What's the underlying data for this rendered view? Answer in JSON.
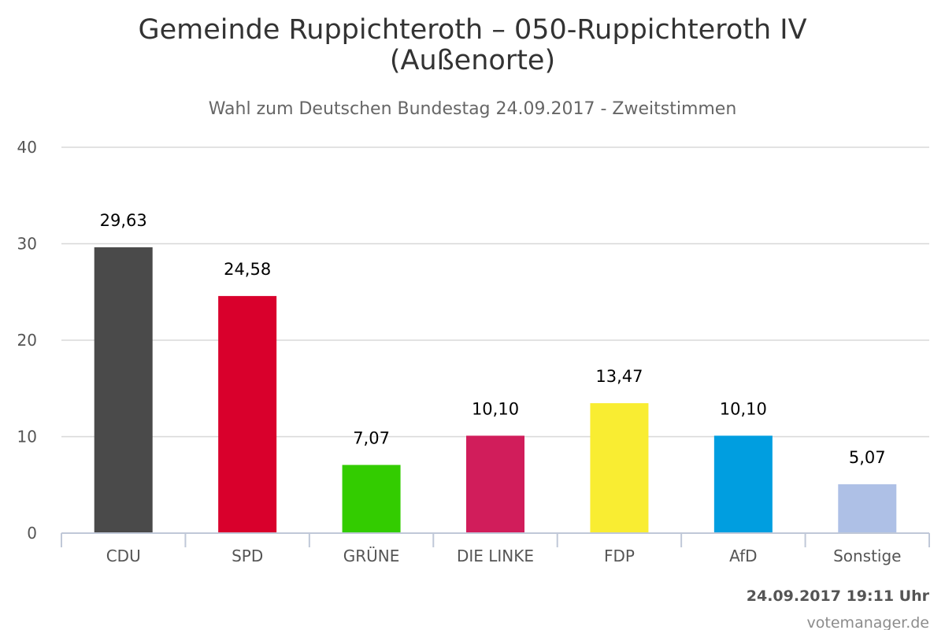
{
  "header": {
    "title_line1": "Gemeinde Ruppichteroth – 050-Ruppichteroth IV",
    "title_line2": "(Außenorte)",
    "subtitle": "Wahl zum Deutschen Bundestag 24.09.2017 - Zweitstimmen"
  },
  "footer": {
    "timestamp": "24.09.2017 19:11 Uhr",
    "credit": "votemanager.de"
  },
  "chart_data": {
    "type": "bar",
    "categories": [
      "CDU",
      "SPD",
      "GRÜNE",
      "DIE LINKE",
      "FDP",
      "AfD",
      "Sonstige"
    ],
    "values": [
      29.63,
      24.58,
      7.07,
      10.1,
      13.47,
      10.1,
      5.07
    ],
    "value_labels": [
      "29,63",
      "24,58",
      "7,07",
      "10,10",
      "13,47",
      "10,10",
      "5,07"
    ],
    "colors": [
      "#4a4a4a",
      "#d9002c",
      "#33cc00",
      "#d11d5b",
      "#f9ed32",
      "#009ee0",
      "#aec0e6"
    ],
    "ylim": [
      0,
      40
    ],
    "yticks": [
      "0",
      "10",
      "20",
      "30",
      "40"
    ],
    "grid": true,
    "legend": "none"
  }
}
